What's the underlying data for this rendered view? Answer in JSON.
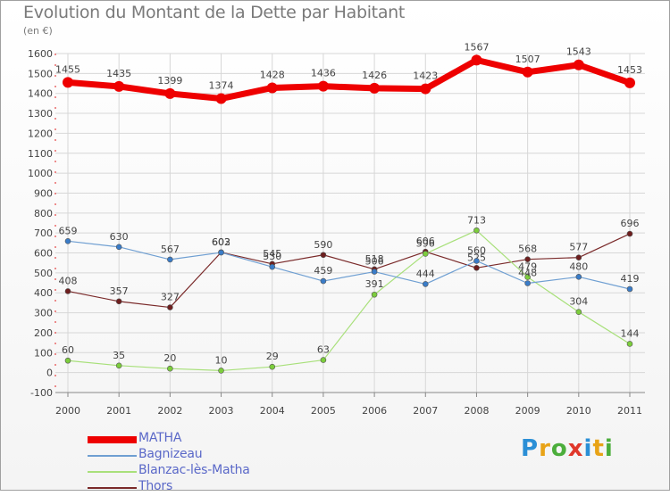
{
  "title": "Evolution du Montant de la Dette par Habitant",
  "unit_label": "(en €)",
  "brand": {
    "text": "Proxiti",
    "letters": [
      {
        "ch": "P",
        "color": "#2b8fd6"
      },
      {
        "ch": "r",
        "color": "#e8a317"
      },
      {
        "ch": "o",
        "color": "#4cae3c"
      },
      {
        "ch": "x",
        "color": "#e0382b"
      },
      {
        "ch": "i",
        "color": "#2b8fd6"
      },
      {
        "ch": "t",
        "color": "#e8a317"
      },
      {
        "ch": "i",
        "color": "#4cae3c"
      }
    ]
  },
  "chart_data": {
    "type": "line",
    "x": [
      "2000",
      "2001",
      "2002",
      "2003",
      "2004",
      "2005",
      "2006",
      "2007",
      "2008",
      "2009",
      "2010",
      "2011"
    ],
    "ylim": [
      -100,
      1600
    ],
    "yticks": [
      -100,
      0,
      100,
      200,
      300,
      400,
      500,
      600,
      700,
      800,
      900,
      1000,
      1100,
      1200,
      1300,
      1400,
      1500,
      1600
    ],
    "grid": true,
    "legend_position": "bottom-left",
    "series": [
      {
        "name": "MATHA",
        "color": "#ee0000",
        "marker": "#ee0000",
        "width": 7,
        "radius": 6,
        "values": [
          1455,
          1435,
          1399,
          1374,
          1428,
          1436,
          1426,
          1423,
          1567,
          1507,
          1543,
          1453
        ],
        "labels": [
          "1455",
          "1435",
          "1399",
          "1374",
          "1428",
          "1436",
          "1426",
          "1423",
          "1567",
          "1507",
          "1543",
          "1453"
        ]
      },
      {
        "name": "Bagnizeau",
        "color": "#6f9fd2",
        "marker": "#3a7cc8",
        "width": 1.2,
        "radius": 3,
        "values": [
          659,
          630,
          567,
          602,
          530,
          459,
          506,
          444,
          560,
          448,
          480,
          419
        ],
        "labels": [
          "659",
          "630",
          "567",
          "602",
          "530",
          "459",
          "506",
          "444",
          "560",
          "448",
          "480",
          "419"
        ]
      },
      {
        "name": "Blanzac-lès-Matha",
        "color": "#a8e07a",
        "marker": "#7ccd3c",
        "width": 1.2,
        "radius": 3,
        "values": [
          60,
          35,
          20,
          10,
          29,
          63,
          391,
          596,
          713,
          479,
          304,
          144
        ],
        "labels": [
          "60",
          "35",
          "20",
          "10",
          "29",
          "63",
          "391",
          "596",
          "713",
          "479",
          "304",
          "144"
        ]
      },
      {
        "name": "Thors",
        "color": "#7a2a2a",
        "marker": "#6e1e1e",
        "width": 1.2,
        "radius": 3,
        "values": [
          408,
          357,
          327,
          603,
          545,
          590,
          518,
          606,
          525,
          568,
          577,
          696
        ],
        "labels": [
          "408",
          "357",
          "327",
          "603",
          "545",
          "590",
          "518",
          "606",
          "525",
          "568",
          "577",
          "696"
        ]
      }
    ]
  }
}
